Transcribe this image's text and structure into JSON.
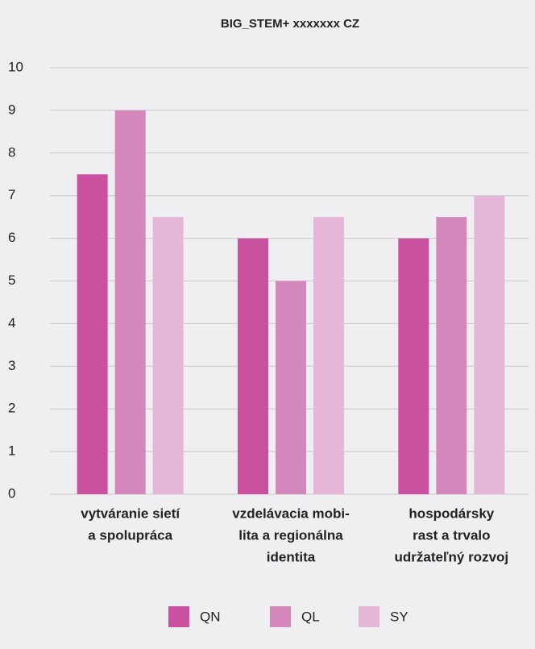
{
  "chart_data": {
    "type": "bar",
    "title": "BIG_STEM+ xxxxxxx CZ",
    "categories": [
      [
        "vytváranie sietí",
        "a spolupráca"
      ],
      [
        "vzdelávacia mobi-",
        "lita a regionálna",
        "identita"
      ],
      [
        "hospodársky",
        "rast a trvalo",
        "udržateľný rozvoj"
      ]
    ],
    "series": [
      {
        "name": "QN",
        "color": "#c9519f",
        "values": [
          7.5,
          6,
          6
        ]
      },
      {
        "name": "QL",
        "color": "#d487bb",
        "values": [
          9,
          5,
          6.5
        ]
      },
      {
        "name": "SY",
        "color": "#e6b6d6",
        "values": [
          6.5,
          6.5,
          7
        ]
      }
    ],
    "ylim": [
      0,
      10
    ],
    "yticks": [
      0,
      1,
      2,
      3,
      4,
      5,
      6,
      7,
      8,
      9,
      10
    ],
    "grid": true,
    "legend": "bottom"
  }
}
